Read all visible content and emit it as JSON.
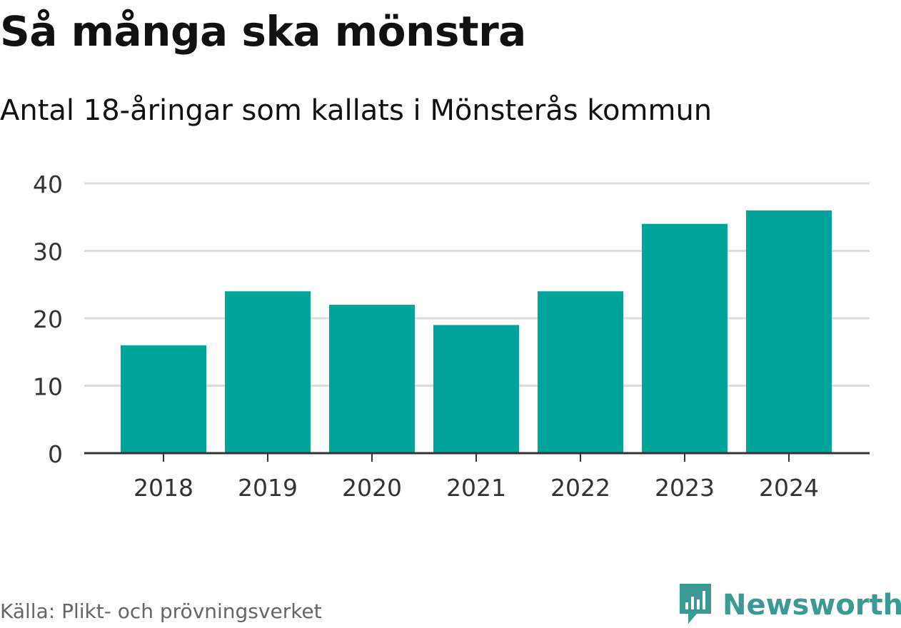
{
  "header": {
    "title": "Så många ska mönstra",
    "subtitle": "Antal 18-åringar som kallats i Mönsterås kommun"
  },
  "footer": {
    "source": "Källa: Plikt- och prövningsverket",
    "brand": "Newsworthy",
    "brand_icon": "newsworthy-logo-icon"
  },
  "colors": {
    "bar": "#00a49a",
    "grid": "#dddddd",
    "axis": "#333333",
    "tick_text": "#333333",
    "brand": "#3a9a95"
  },
  "chart_data": {
    "type": "bar",
    "categories": [
      "2018",
      "2019",
      "2020",
      "2021",
      "2022",
      "2023",
      "2024"
    ],
    "values": [
      16,
      24,
      22,
      19,
      24,
      34,
      36
    ],
    "ylim": [
      0,
      40
    ],
    "yticks": [
      0,
      10,
      20,
      30,
      40
    ],
    "grid": true
  }
}
